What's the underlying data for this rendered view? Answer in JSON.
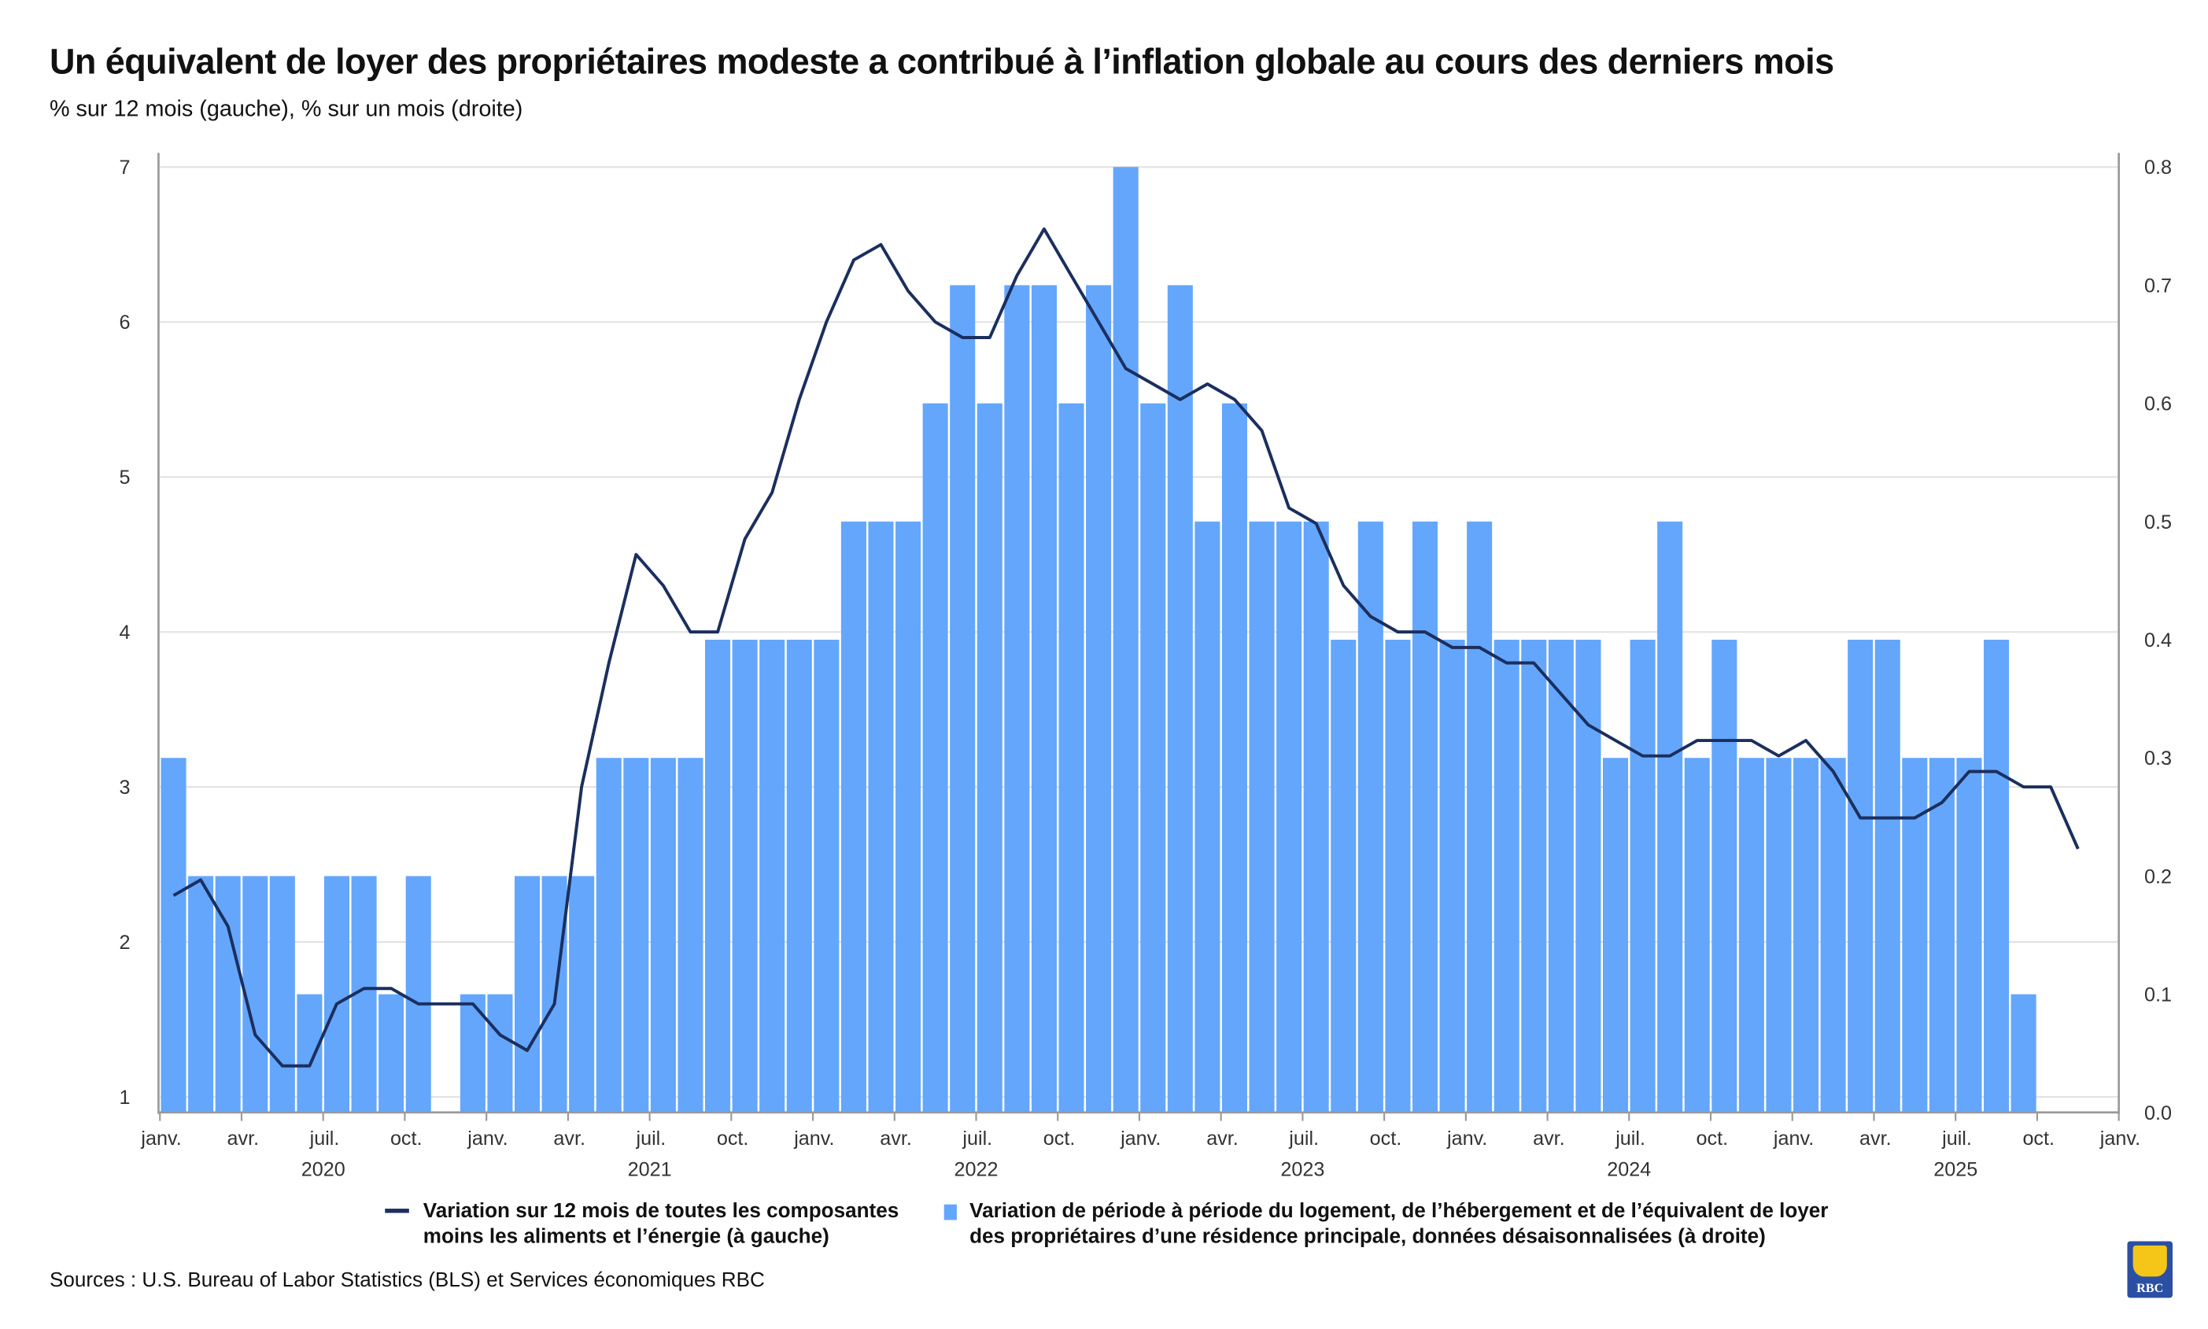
{
  "title": "Un équivalent de loyer des propriétaires modeste a contribué à l’inflation globale au cours des derniers mois",
  "subtitle": "% sur 12 mois (gauche), % sur un mois (droite)",
  "legend": {
    "line_label_1": "Variation sur 12 mois de toutes les composantes",
    "line_label_2": "moins les aliments et l’énergie (à gauche)",
    "bar_label_1": "Variation de période à période du logement, de l’hébergement et de l’équivalent de loyer",
    "bar_label_2": "des propriétaires d’une résidence principale, données désaisonnalisées (à droite)"
  },
  "source": "Sources : U.S. Bureau of Labor Statistics (BLS) et Services économiques RBC",
  "logo_text": "RBC",
  "chart_data": {
    "type": "bar+line",
    "title": "Un équivalent de loyer des propriétaires modeste a contribué à l’inflation globale au cours des derniers mois",
    "start_month": "2020-01",
    "x_tick_labels": [
      "janv.",
      "avr.",
      "juil.",
      "oct.",
      "janv.",
      "avr.",
      "juil.",
      "oct.",
      "janv.",
      "avr.",
      "juil.",
      "oct.",
      "janv.",
      "avr.",
      "juil.",
      "oct.",
      "janv.",
      "avr.",
      "juil.",
      "oct.",
      "janv.",
      "avr.",
      "juil.",
      "oct.",
      "janv."
    ],
    "year_labels": [
      "2020",
      "2021",
      "2022",
      "2023",
      "2024",
      "2025"
    ],
    "left_axis": {
      "ylim": [
        0.9,
        7
      ],
      "ticks": [
        "1",
        "2",
        "3",
        "4",
        "5",
        "6",
        "7"
      ]
    },
    "right_axis": {
      "ylim": [
        0,
        0.8
      ],
      "ticks": [
        "0.0",
        "0.1",
        "0.2",
        "0.3",
        "0.4",
        "0.5",
        "0.6",
        "0.7",
        "0.8"
      ]
    },
    "grid": true,
    "legend_position": "bottom",
    "colors": {
      "bars": "#64a6fc",
      "line": "#1b2f5e",
      "grid": "#e3e3e3",
      "axis": "#9a9a9a"
    },
    "series": [
      {
        "name": "Variation de période à période du logement, de l’hébergement et de l’équivalent de loyer des propriétaires d’une résidence principale, données désaisonnalisées (à droite)",
        "type": "bar",
        "axis": "right",
        "values": [
          0.3,
          0.2,
          0.2,
          0.2,
          0.2,
          0.1,
          0.2,
          0.2,
          0.1,
          0.2,
          0.0,
          0.1,
          0.1,
          0.2,
          0.2,
          0.2,
          0.3,
          0.3,
          0.3,
          0.3,
          0.4,
          0.4,
          0.4,
          0.4,
          0.4,
          0.5,
          0.5,
          0.5,
          0.6,
          0.7,
          0.6,
          0.7,
          0.7,
          0.6,
          0.7,
          0.8,
          0.6,
          0.7,
          0.5,
          0.6,
          0.5,
          0.5,
          0.5,
          0.4,
          0.5,
          0.4,
          0.5,
          0.4,
          0.5,
          0.4,
          0.4,
          0.4,
          0.4,
          0.3,
          0.4,
          0.5,
          0.3,
          0.4,
          0.3,
          0.3,
          0.3,
          0.3,
          0.4,
          0.4,
          0.3,
          0.3,
          0.3,
          0.4,
          0.1
        ]
      },
      {
        "name": "Variation sur 12 mois de toutes les composantes moins les aliments et l’énergie (à gauche)",
        "type": "line",
        "axis": "left",
        "values": [
          2.3,
          2.4,
          2.1,
          1.4,
          1.2,
          1.2,
          1.6,
          1.7,
          1.7,
          1.6,
          1.6,
          1.6,
          1.4,
          1.3,
          1.6,
          3.0,
          3.8,
          4.5,
          4.3,
          4.0,
          4.0,
          4.6,
          4.9,
          5.5,
          6.0,
          6.4,
          6.5,
          6.2,
          6.0,
          5.9,
          5.9,
          6.3,
          6.6,
          6.3,
          6.0,
          5.7,
          5.6,
          5.5,
          5.6,
          5.5,
          5.3,
          4.8,
          4.7,
          4.3,
          4.1,
          4.0,
          4.0,
          3.9,
          3.9,
          3.8,
          3.8,
          3.6,
          3.4,
          3.3,
          3.2,
          3.2,
          3.3,
          3.3,
          3.3,
          3.2,
          3.3,
          3.1,
          2.8,
          2.8,
          2.8,
          2.9,
          3.1,
          3.1,
          3.0,
          3.0,
          2.6
        ]
      }
    ]
  }
}
